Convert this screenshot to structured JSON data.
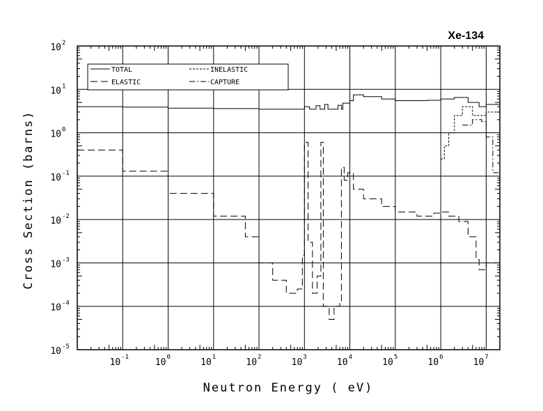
{
  "chart_data": {
    "type": "line",
    "title": "Xe-134",
    "xlabel": "Neutron Energy ( eV)",
    "ylabel": "Cross Section (barns)",
    "xscale": "log",
    "yscale": "log",
    "xlim": [
      0.01,
      20000000
    ],
    "ylim": [
      1e-05,
      100
    ],
    "grid": true,
    "legend_position": "top-left",
    "x_ticks": [
      {
        "base": "10",
        "exp": "-1",
        "value": 0.1
      },
      {
        "base": "10",
        "exp": "0",
        "value": 1
      },
      {
        "base": "10",
        "exp": "1",
        "value": 10
      },
      {
        "base": "10",
        "exp": "2",
        "value": 100
      },
      {
        "base": "10",
        "exp": "3",
        "value": 1000
      },
      {
        "base": "10",
        "exp": "4",
        "value": 10000
      },
      {
        "base": "10",
        "exp": "5",
        "value": 100000
      },
      {
        "base": "10",
        "exp": "6",
        "value": 1000000
      },
      {
        "base": "10",
        "exp": "7",
        "value": 10000000
      }
    ],
    "y_ticks": [
      {
        "base": "10",
        "exp": "2",
        "value": 100
      },
      {
        "base": "10",
        "exp": "1",
        "value": 10
      },
      {
        "base": "10",
        "exp": "0",
        "value": 1
      },
      {
        "base": "10",
        "exp": "-1",
        "value": 0.1
      },
      {
        "base": "10",
        "exp": "-2",
        "value": 0.01
      },
      {
        "base": "10",
        "exp": "-3",
        "value": 0.001
      },
      {
        "base": "10",
        "exp": "-4",
        "value": 0.0001
      },
      {
        "base": "10",
        "exp": "-5",
        "value": 1e-05
      }
    ],
    "series": [
      {
        "name": "TOTAL",
        "dash": "solid",
        "points": [
          [
            0.01,
            4.0
          ],
          [
            0.1,
            3.9
          ],
          [
            1,
            3.7
          ],
          [
            10,
            3.6
          ],
          [
            100,
            3.5
          ],
          [
            900,
            3.5
          ],
          [
            1000,
            4.0
          ],
          [
            1300,
            3.5
          ],
          [
            1800,
            4.2
          ],
          [
            2200,
            3.5
          ],
          [
            2800,
            4.5
          ],
          [
            3300,
            3.5
          ],
          [
            5500,
            4.3
          ],
          [
            6500,
            3.5
          ],
          [
            7000,
            4.8
          ],
          [
            10000,
            5.5
          ],
          [
            12000,
            7.5
          ],
          [
            20000,
            6.8
          ],
          [
            50000,
            6.0
          ],
          [
            100000,
            5.5
          ],
          [
            500000,
            5.6
          ],
          [
            1000000,
            6.0
          ],
          [
            2000000,
            6.5
          ],
          [
            4000000,
            5.0
          ],
          [
            7000000,
            4.0
          ],
          [
            10000000,
            4.5
          ],
          [
            20000000,
            5.0
          ]
        ]
      },
      {
        "name": "ELASTIC",
        "dash": "long-dash",
        "points": [
          [
            0.01,
            0.4
          ],
          [
            0.1,
            0.13
          ],
          [
            1,
            0.04
          ],
          [
            10,
            0.012
          ],
          [
            50,
            0.004
          ],
          [
            100,
            0.001
          ],
          [
            200,
            0.0004
          ],
          [
            400,
            0.0002
          ],
          [
            700,
            0.00025
          ],
          [
            900,
            0.0015
          ],
          [
            1000,
            0.6
          ],
          [
            1200,
            0.003
          ],
          [
            1500,
            0.0002
          ],
          [
            1900,
            0.0005
          ],
          [
            2300,
            0.6
          ],
          [
            2600,
            0.0001
          ],
          [
            3500,
            5e-05
          ],
          [
            4500,
            0.0001
          ],
          [
            6000,
            0.00012
          ],
          [
            6500,
            0.16
          ],
          [
            7500,
            0.08
          ],
          [
            9000,
            0.12
          ],
          [
            12000,
            0.05
          ],
          [
            20000,
            0.03
          ],
          [
            50000,
            0.02
          ],
          [
            100000,
            0.015
          ],
          [
            300000,
            0.012
          ],
          [
            700000,
            0.014
          ],
          [
            1000000,
            0.015
          ],
          [
            1500000,
            0.012
          ],
          [
            2500000,
            0.009
          ],
          [
            4000000,
            0.004
          ],
          [
            6000000,
            0.0012
          ],
          [
            7000000,
            0.0007
          ],
          [
            10000000,
            0.001
          ],
          [
            20000000,
            0.001
          ]
        ]
      },
      {
        "name": "INELASTIC",
        "dash": "short-dash",
        "points": [
          [
            1000000,
            0.25
          ],
          [
            1200000,
            0.5
          ],
          [
            1500000,
            1.0
          ],
          [
            2000000,
            2.5
          ],
          [
            3000000,
            4.0
          ],
          [
            5000000,
            2.5
          ],
          [
            8000000,
            2.5
          ],
          [
            10000000,
            3.0
          ],
          [
            20000000,
            3.5
          ]
        ]
      },
      {
        "name": "CAPTURE",
        "dash": "dash-dot",
        "points": [
          [
            3000000,
            1.5
          ],
          [
            5000000,
            2.0
          ],
          [
            8000000,
            1.8
          ],
          [
            10000000,
            0.8
          ],
          [
            14000000,
            0.12
          ],
          [
            20000000,
            0.08
          ]
        ]
      }
    ]
  }
}
